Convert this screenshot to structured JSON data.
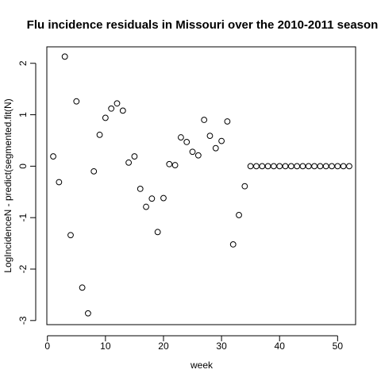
{
  "chart_data": {
    "type": "scatter",
    "title": "Flu incidence residuals in Missouri over the 2010-2011 season",
    "xlabel": "week",
    "ylabel": "LogIncidenceN - predict(segmented.fit(N)",
    "xlim": [
      -0.1,
      53.1
    ],
    "ylim": [
      -3.08,
      2.32
    ],
    "xticks": [
      0,
      10,
      20,
      30,
      40,
      50
    ],
    "yticks": [
      -3,
      -2,
      -1,
      0,
      1,
      2
    ],
    "grid": false,
    "marker": "open-circle",
    "x": [
      1,
      2,
      3,
      4,
      5,
      6,
      7,
      8,
      9,
      10,
      11,
      12,
      13,
      14,
      15,
      16,
      17,
      18,
      19,
      20,
      21,
      22,
      23,
      24,
      25,
      26,
      27,
      28,
      29,
      30,
      31,
      32,
      33,
      34,
      35,
      36,
      37,
      38,
      39,
      40,
      41,
      42,
      43,
      44,
      45,
      46,
      47,
      48,
      49,
      50,
      51,
      52
    ],
    "y": [
      0.19,
      -0.31,
      2.13,
      -1.34,
      1.26,
      -2.36,
      -2.86,
      -0.1,
      0.61,
      0.94,
      1.12,
      1.22,
      1.08,
      0.07,
      0.19,
      -0.44,
      -0.79,
      -0.63,
      -1.28,
      -0.62,
      0.04,
      0.02,
      0.56,
      0.47,
      0.28,
      0.21,
      0.9,
      0.59,
      0.35,
      0.49,
      0.87,
      -1.52,
      -0.95,
      -0.39,
      0,
      0,
      0,
      0,
      0,
      0,
      0,
      0,
      0,
      0,
      0,
      0,
      0,
      0,
      0,
      0,
      0,
      0
    ]
  }
}
